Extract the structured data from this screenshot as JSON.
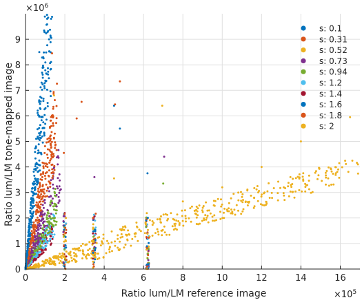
{
  "chart_data": {
    "type": "scatter",
    "xlabel": "Ratio lum/LM reference image",
    "ylabel": "Ratio lum/LM tone-mapped image",
    "x_exponent_label": "×10",
    "x_exponent_power": "5",
    "y_exponent_label": "×10",
    "y_exponent_power": "6",
    "xlim": [
      0,
      17
    ],
    "ylim": [
      0,
      10
    ],
    "xticks": [
      "0",
      "2",
      "4",
      "6",
      "8",
      "10",
      "12",
      "14",
      "16"
    ],
    "yticks": [
      "0",
      "1",
      "2",
      "3",
      "4",
      "5",
      "6",
      "7",
      "8",
      "9"
    ],
    "grid": true,
    "legend_position": "top-right",
    "series": [
      {
        "name": "s: 0.1",
        "color": "#0072BD"
      },
      {
        "name": "s: 0.31",
        "color": "#D95319"
      },
      {
        "name": "s: 0.52",
        "color": "#EDB120"
      },
      {
        "name": "s: 0.73",
        "color": "#7E2F8E"
      },
      {
        "name": "s: 0.94",
        "color": "#77AC30"
      },
      {
        "name": "s: 1.2",
        "color": "#4DBEEE"
      },
      {
        "name": "s: 1.4",
        "color": "#A2142F"
      },
      {
        "name": "s: 1.6",
        "color": "#0072BD"
      },
      {
        "name": "s: 1.8",
        "color": "#D95319"
      },
      {
        "name": "s: 2",
        "color": "#EDB120"
      }
    ],
    "notable_points": [
      {
        "series": 0,
        "x": [
          1.15,
          1.3,
          1.35,
          1.1,
          1.2,
          0.7,
          0.9,
          4.5,
          4.8,
          6.2
        ],
        "y": [
          9.85,
          9.8,
          9.88,
          9.8,
          9.0,
          8.5,
          8.3,
          6.4,
          5.5,
          3.75
        ]
      },
      {
        "series": 1,
        "x": [
          1.35,
          4.8,
          2.85,
          2.6,
          1.95,
          4.55
        ],
        "y": [
          8.45,
          7.35,
          6.55,
          5.9,
          4.55,
          6.45
        ]
      },
      {
        "series": 2,
        "x": [
          1.45,
          6.95,
          4.5,
          14.0,
          16.5,
          16.9,
          12.0,
          10.0,
          8.0
        ],
        "y": [
          6.8,
          6.4,
          3.55,
          5.0,
          5.95,
          4.1,
          4.0,
          3.2,
          2.65
        ]
      },
      {
        "series": 3,
        "x": [
          7.05,
          3.5
        ],
        "y": [
          4.4,
          3.6
        ]
      },
      {
        "series": 4,
        "x": [
          7.0
        ],
        "y": [
          3.35
        ]
      }
    ]
  }
}
